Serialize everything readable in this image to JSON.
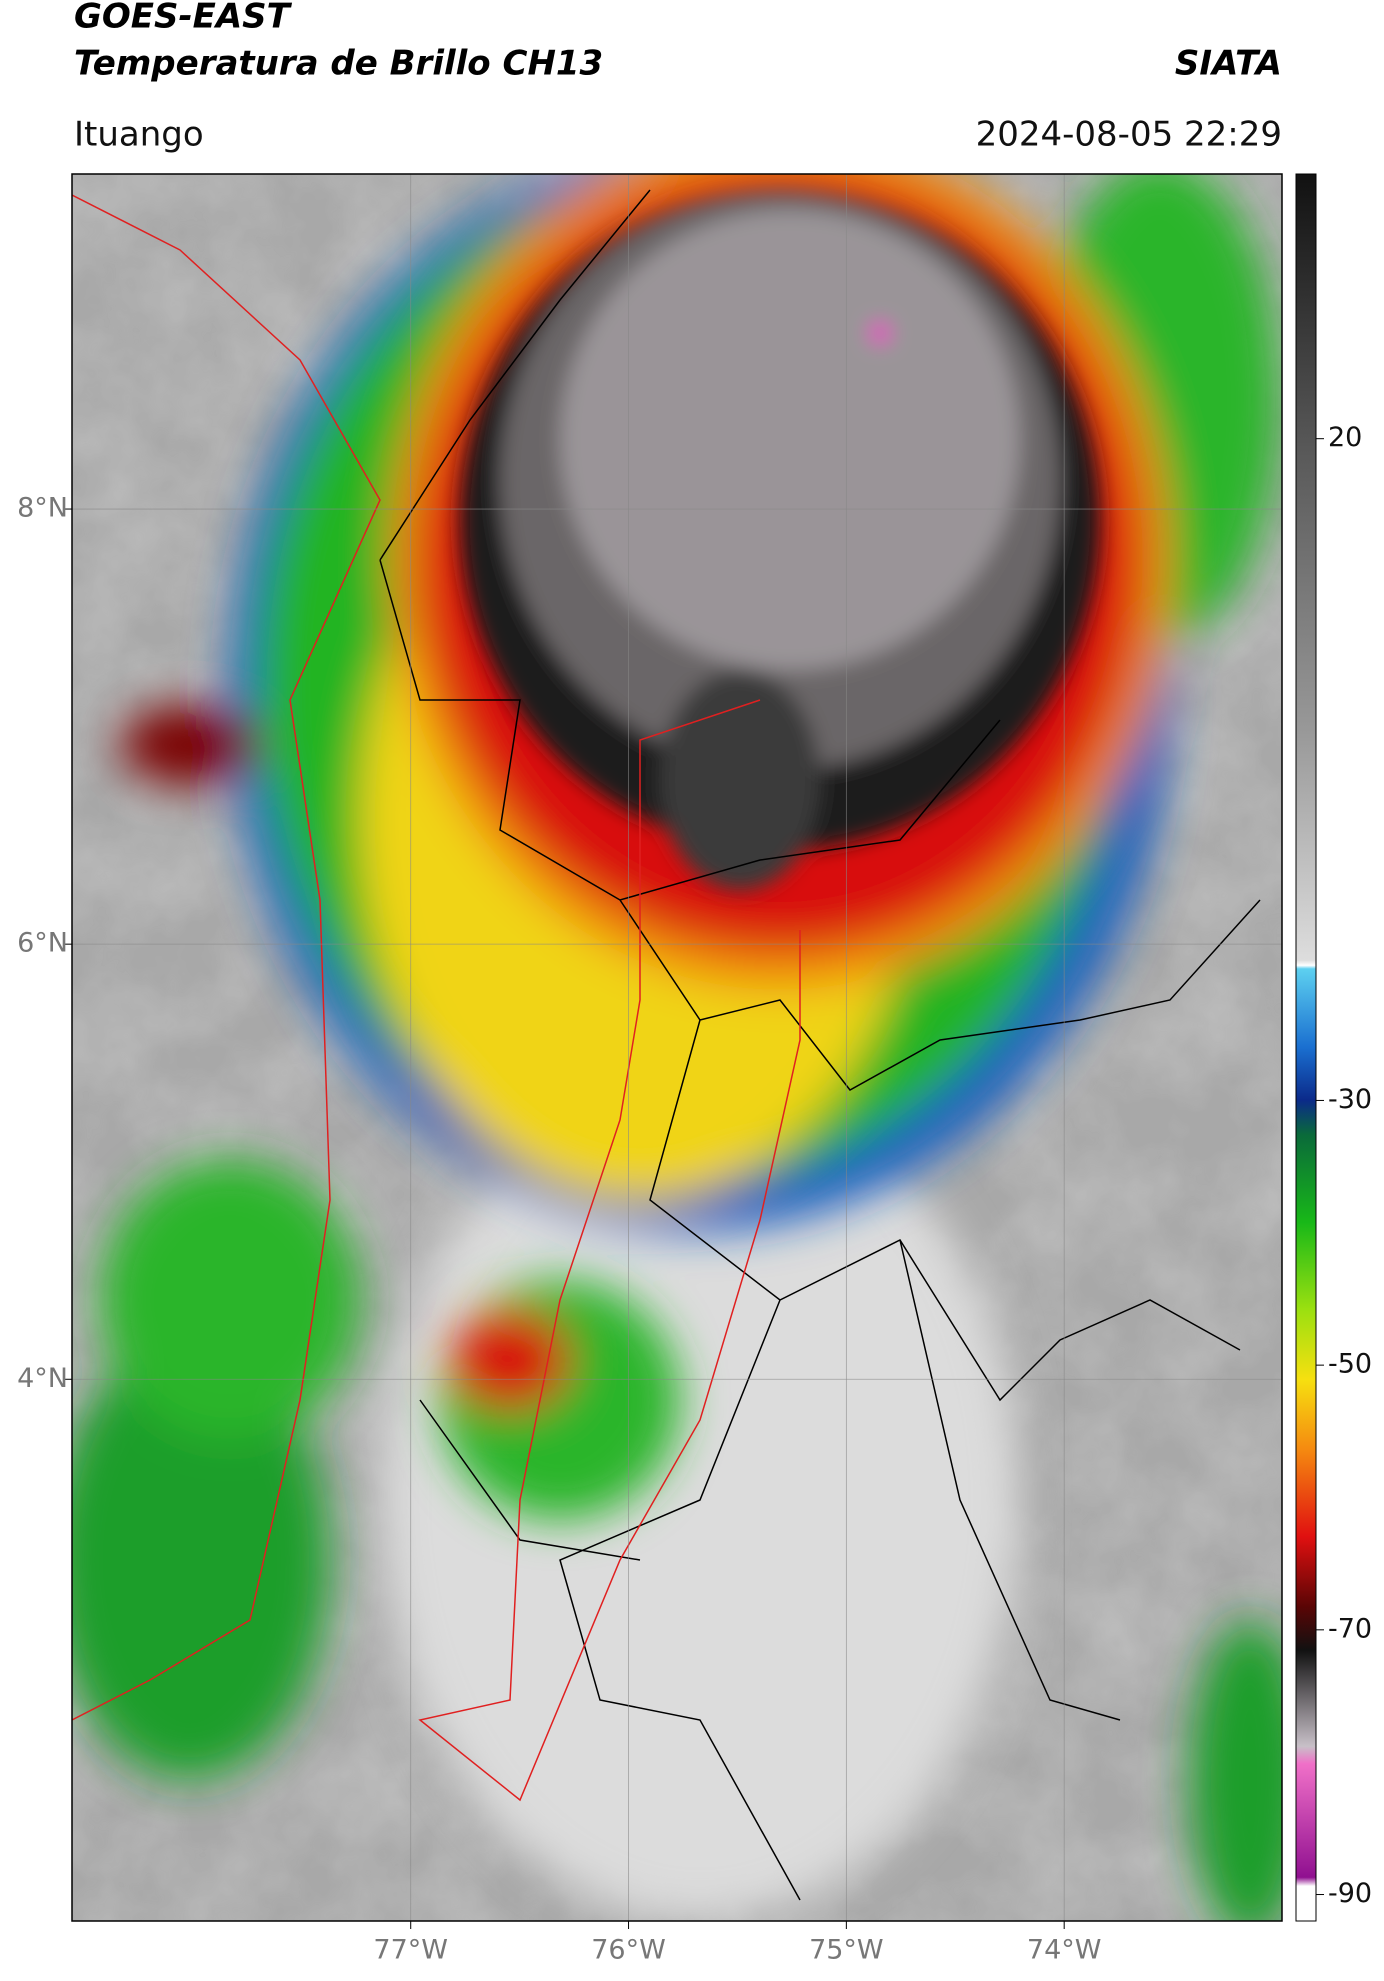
{
  "header": {
    "title": "GOES-EAST",
    "subtitle": "Temperatura de Brillo CH13",
    "agency": "SIATA",
    "location": "Ituango",
    "datetime": "2024-08-05 22:29"
  },
  "map": {
    "lon_range": [
      -78.555,
      -73.0
    ],
    "lat_range": [
      1.51,
      9.54
    ],
    "lon_ticks": [
      {
        "value": -77,
        "label": "77°W"
      },
      {
        "value": -76,
        "label": "76°W"
      },
      {
        "value": -75,
        "label": "75°W"
      },
      {
        "value": -74,
        "label": "74°W"
      }
    ],
    "lat_ticks": [
      {
        "value": 8,
        "label": "8°N"
      },
      {
        "value": 6,
        "label": "6°N"
      },
      {
        "value": 4,
        "label": "4°N"
      }
    ]
  },
  "colorbar": {
    "range": [
      -92,
      40
    ],
    "ticks": [
      20,
      -30,
      -50,
      -70,
      -90
    ]
  }
}
